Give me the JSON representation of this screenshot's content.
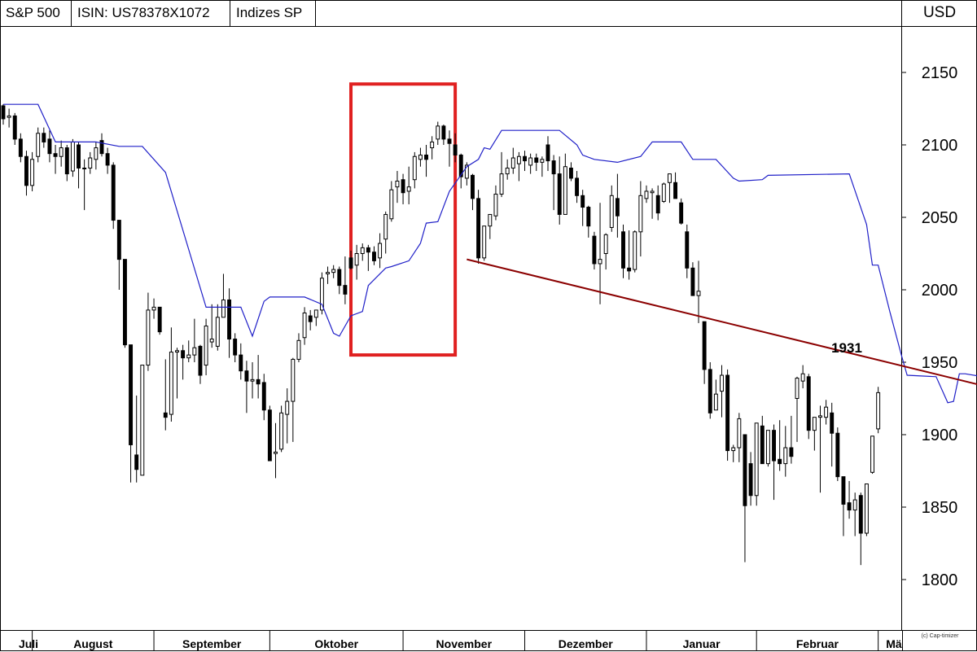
{
  "header": {
    "instrument": "S&P 500",
    "isin": "ISIN: US78378X1072",
    "exchange": "Indizes SP",
    "currency": "USD"
  },
  "copyright": "(c) Cap-timizer",
  "colors": {
    "stop_line": "#2020c8",
    "trendline": "#8b0000",
    "highlight_box": "#e02020",
    "candle": "#000000"
  },
  "chart_data": {
    "type": "candlestick",
    "title": "S&P 500",
    "ylim": [
      1760,
      2190
    ],
    "yticks": [
      1800,
      1850,
      1900,
      1950,
      2000,
      2050,
      2100,
      2150
    ],
    "ytick_labels": [
      "1800",
      "1850",
      "1900",
      "1950",
      "2000",
      "2050",
      "2100",
      "2150"
    ],
    "x_index_range": [
      0,
      154
    ],
    "months": [
      {
        "label": "Juli",
        "start": -1
      },
      {
        "label": "August",
        "start": 5
      },
      {
        "label": "September",
        "start": 26
      },
      {
        "label": "Oktober",
        "start": 46
      },
      {
        "label": "November",
        "start": 69
      },
      {
        "label": "Dezember",
        "start": 90
      },
      {
        "label": "Januar",
        "start": 111
      },
      {
        "label": "Februar",
        "start": 130
      },
      {
        "label": "Mä",
        "start": 151
      }
    ],
    "candles": [
      [
        2127,
        2128,
        2114,
        2118
      ],
      [
        2119,
        2125,
        2112,
        2120
      ],
      [
        2120,
        2122,
        2100,
        2104
      ],
      [
        2104,
        2108,
        2088,
        2092
      ],
      [
        2092,
        2096,
        2065,
        2072
      ],
      [
        2072,
        2095,
        2068,
        2090
      ],
      [
        2092,
        2112,
        2088,
        2108
      ],
      [
        2108,
        2112,
        2098,
        2102
      ],
      [
        2104,
        2110,
        2088,
        2094
      ],
      [
        2094,
        2100,
        2080,
        2092
      ],
      [
        2092,
        2103,
        2085,
        2098
      ],
      [
        2098,
        2100,
        2075,
        2080
      ],
      [
        2082,
        2104,
        2078,
        2102
      ],
      [
        2100,
        2102,
        2070,
        2084
      ],
      [
        2084,
        2090,
        2055,
        2084
      ],
      [
        2084,
        2095,
        2080,
        2091
      ],
      [
        2090,
        2102,
        2083,
        2098
      ],
      [
        2103,
        2108,
        2092,
        2094
      ],
      [
        2094,
        2098,
        2080,
        2086
      ],
      [
        2086,
        2088,
        2042,
        2048
      ],
      [
        2048,
        2048,
        2000,
        2021
      ],
      [
        2021,
        2021,
        1960,
        1962
      ],
      [
        1962,
        1962,
        1867,
        1893
      ],
      [
        1886,
        1927,
        1867,
        1876
      ],
      [
        1872,
        1945,
        1872,
        1948
      ],
      [
        1948,
        1998,
        1944,
        1986
      ],
      [
        1986,
        1994,
        1980,
        1988
      ],
      [
        1988,
        1988,
        1969,
        1971
      ],
      [
        1915,
        1952,
        1903,
        1912
      ],
      [
        1914,
        1974,
        1909,
        1957
      ],
      [
        1957,
        1960,
        1925,
        1958
      ],
      [
        1958,
        1962,
        1938,
        1953
      ],
      [
        1953,
        1965,
        1950,
        1955
      ],
      [
        1955,
        1980,
        1950,
        1960
      ],
      [
        1961,
        1962,
        1935,
        1941
      ],
      [
        1948,
        1980,
        1941,
        1975
      ],
      [
        1964,
        1990,
        1960,
        1966
      ],
      [
        1961,
        1990,
        1958,
        1981
      ],
      [
        1981,
        2011,
        1981,
        1993
      ],
      [
        1993,
        2001,
        1953,
        1966
      ],
      [
        1966,
        1970,
        1950,
        1955
      ],
      [
        1955,
        1963,
        1938,
        1944
      ],
      [
        1944,
        1951,
        1915,
        1937
      ],
      [
        1937,
        1950,
        1925,
        1938
      ],
      [
        1938,
        1955,
        1925,
        1935
      ],
      [
        1936,
        1942,
        1910,
        1917
      ],
      [
        1917,
        1920,
        1884,
        1882
      ],
      [
        1887,
        1908,
        1870,
        1888
      ],
      [
        1890,
        1920,
        1888,
        1915
      ],
      [
        1914,
        1932,
        1894,
        1923
      ],
      [
        1923,
        1953,
        1895,
        1952
      ],
      [
        1952,
        1970,
        1950,
        1965
      ],
      [
        1967,
        1988,
        1962,
        1984
      ],
      [
        1982,
        1986,
        1972,
        1978
      ],
      [
        1981,
        1986,
        1975,
        1986
      ],
      [
        1986,
        2012,
        1983,
        2008
      ],
      [
        2011,
        2016,
        2004,
        2012
      ],
      [
        2012,
        2017,
        2008,
        2014
      ],
      [
        2014,
        2016,
        1997,
        2003
      ],
      [
        2003,
        2023,
        1990,
        1997
      ],
      [
        2022,
        2027,
        2014,
        2015
      ],
      [
        2017,
        2031,
        2007,
        2025
      ],
      [
        2025,
        2032,
        2020,
        2029
      ],
      [
        2029,
        2031,
        2013,
        2026
      ],
      [
        2026,
        2030,
        2017,
        2020
      ],
      [
        2022,
        2039,
        2015,
        2032
      ],
      [
        2035,
        2054,
        2025,
        2052
      ],
      [
        2049,
        2075,
        2047,
        2069
      ],
      [
        2071,
        2082,
        2060,
        2075
      ],
      [
        2076,
        2080,
        2059,
        2067
      ],
      [
        2068,
        2085,
        2059,
        2071
      ],
      [
        2076,
        2095,
        2070,
        2092
      ],
      [
        2090,
        2098,
        2085,
        2093
      ],
      [
        2093,
        2100,
        2078,
        2090
      ],
      [
        2098,
        2106,
        2090,
        2102
      ],
      [
        2104,
        2116,
        2100,
        2113
      ],
      [
        2113,
        2114,
        2100,
        2104
      ],
      [
        2104,
        2110,
        2085,
        2101
      ],
      [
        2100,
        2108,
        2088,
        2093
      ],
      [
        2093,
        2094,
        2070,
        2078
      ],
      [
        2077,
        2088,
        2072,
        2086
      ],
      [
        2079,
        2080,
        2055,
        2063
      ],
      [
        2063,
        2069,
        2018,
        2022
      ],
      [
        2022,
        2044,
        2020,
        2044
      ],
      [
        2044,
        2050,
        2035,
        2052
      ],
      [
        2051,
        2072,
        2048,
        2066
      ],
      [
        2066,
        2095,
        2064,
        2080
      ],
      [
        2080,
        2090,
        2076,
        2084
      ],
      [
        2084,
        2098,
        2080,
        2091
      ],
      [
        2087,
        2095,
        2075,
        2092
      ],
      [
        2092,
        2096,
        2082,
        2089
      ],
      [
        2086,
        2094,
        2080,
        2091
      ],
      [
        2091,
        2094,
        2082,
        2088
      ],
      [
        2088,
        2092,
        2078,
        2090
      ],
      [
        2100,
        2106,
        2082,
        2089
      ],
      [
        2089,
        2093,
        2055,
        2080
      ],
      [
        2080,
        2092,
        2045,
        2052
      ],
      [
        2052,
        2094,
        2052,
        2085
      ],
      [
        2084,
        2088,
        2075,
        2077
      ],
      [
        2077,
        2082,
        2060,
        2065
      ],
      [
        2065,
        2069,
        2044,
        2057
      ],
      [
        2057,
        2058,
        2036,
        2044
      ],
      [
        2037,
        2040,
        2014,
        2018
      ],
      [
        2018,
        2060,
        1990,
        2021
      ],
      [
        2025,
        2039,
        2014,
        2038
      ],
      [
        2043,
        2072,
        2040,
        2065
      ],
      [
        2063,
        2080,
        2036,
        2051
      ],
      [
        2040,
        2045,
        2008,
        2015
      ],
      [
        2015,
        2041,
        2007,
        2013
      ],
      [
        2014,
        2041,
        2012,
        2040
      ],
      [
        2040,
        2075,
        2023,
        2065
      ],
      [
        2063,
        2072,
        2060,
        2068
      ],
      [
        2067,
        2070,
        2049,
        2068
      ],
      [
        2065,
        2072,
        2048,
        2053
      ],
      [
        2061,
        2074,
        2060,
        2073
      ],
      [
        2074,
        2080,
        2060,
        2080
      ],
      [
        2074,
        2081,
        2063,
        2063
      ],
      [
        2060,
        2063,
        2045,
        2046
      ],
      [
        2040,
        2045,
        2008,
        2015
      ],
      [
        2015,
        2019,
        1998,
        1996
      ],
      [
        1996,
        2020,
        1977,
        1999
      ],
      [
        1978,
        1978,
        1935,
        1945
      ],
      [
        1945,
        1950,
        1911,
        1915
      ],
      [
        1917,
        1938,
        1918,
        1928
      ],
      [
        1930,
        1948,
        1912,
        1941
      ],
      [
        1941,
        1945,
        1882,
        1889
      ],
      [
        1889,
        1893,
        1881,
        1891
      ],
      [
        1891,
        1915,
        1881,
        1911
      ],
      [
        1900,
        1900,
        1812,
        1851
      ],
      [
        1880,
        1888,
        1851,
        1858
      ],
      [
        1858,
        1908,
        1851,
        1908
      ],
      [
        1906,
        1913,
        1882,
        1880
      ],
      [
        1880,
        1903,
        1878,
        1903
      ],
      [
        1903,
        1907,
        1855,
        1882
      ],
      [
        1883,
        1910,
        1875,
        1880
      ],
      [
        1880,
        1906,
        1871,
        1891
      ],
      [
        1891,
        1913,
        1880,
        1885
      ],
      [
        1925,
        1940,
        1895,
        1939
      ],
      [
        1937,
        1948,
        1932,
        1942
      ],
      [
        1940,
        1942,
        1897,
        1903
      ],
      [
        1903,
        1910,
        1889,
        1912
      ],
      [
        1912,
        1920,
        1860,
        1913
      ],
      [
        1912,
        1924,
        1907,
        1919
      ],
      [
        1915,
        1922,
        1878,
        1901
      ],
      [
        1901,
        1905,
        1868,
        1871
      ],
      [
        1871,
        1871,
        1830,
        1852
      ],
      [
        1853,
        1868,
        1842,
        1848
      ],
      [
        1848,
        1860,
        1830,
        1855
      ],
      [
        1858,
        1860,
        1810,
        1832
      ],
      [
        1832,
        1866,
        1830,
        1866
      ],
      [
        1874,
        1899,
        1873,
        1899
      ],
      [
        1904,
        1933,
        1901,
        1929
      ]
    ],
    "stop_line": [
      [
        0,
        2128
      ],
      [
        6,
        2128
      ],
      [
        9,
        2102
      ],
      [
        16,
        2102
      ],
      [
        20,
        2099
      ],
      [
        24,
        2099
      ],
      [
        28,
        2081
      ],
      [
        35,
        1988
      ],
      [
        41,
        1988
      ],
      [
        43,
        1968
      ],
      [
        45,
        1992
      ],
      [
        46,
        1995
      ],
      [
        52,
        1995
      ],
      [
        55,
        1990
      ],
      [
        57,
        1970
      ],
      [
        58,
        1968
      ],
      [
        60,
        1982
      ],
      [
        62,
        1985
      ],
      [
        63,
        2003
      ],
      [
        66,
        2015
      ],
      [
        67,
        2016
      ],
      [
        70,
        2020
      ],
      [
        72,
        2032
      ],
      [
        73,
        2046
      ],
      [
        75,
        2047
      ],
      [
        77,
        2068
      ],
      [
        80,
        2085
      ],
      [
        82,
        2090
      ],
      [
        83,
        2098
      ],
      [
        84,
        2097
      ],
      [
        86,
        2110
      ],
      [
        92,
        2110
      ],
      [
        96,
        2110
      ],
      [
        99,
        2100
      ],
      [
        100,
        2093
      ],
      [
        102,
        2090
      ],
      [
        106,
        2088
      ],
      [
        110,
        2092
      ],
      [
        112,
        2102
      ],
      [
        117,
        2102
      ],
      [
        119,
        2090
      ],
      [
        123,
        2090
      ],
      [
        126,
        2077
      ],
      [
        127,
        2075
      ],
      [
        131,
        2076
      ],
      [
        132,
        2079
      ],
      [
        146,
        2080
      ],
      [
        149,
        2045
      ],
      [
        150,
        2017
      ],
      [
        151,
        2017
      ],
      [
        153,
        1985
      ],
      [
        155,
        1955
      ],
      [
        156,
        1941
      ],
      [
        161,
        1940
      ],
      [
        163,
        1922
      ],
      [
        164,
        1923
      ],
      [
        165,
        1942
      ],
      [
        166,
        1942
      ],
      [
        169,
        1940
      ],
      [
        170,
        1930
      ],
      [
        171,
        1925
      ],
      [
        173,
        1920
      ],
      [
        174,
        1935
      ]
    ],
    "trendline": {
      "from": [
        80,
        2021
      ],
      "to": [
        173,
        1930
      ],
      "label": "1931",
      "value": 1931
    },
    "highlight_box": {
      "x_from": 60,
      "x_to": 78,
      "y_from": 1955,
      "y_to": 2142
    }
  }
}
